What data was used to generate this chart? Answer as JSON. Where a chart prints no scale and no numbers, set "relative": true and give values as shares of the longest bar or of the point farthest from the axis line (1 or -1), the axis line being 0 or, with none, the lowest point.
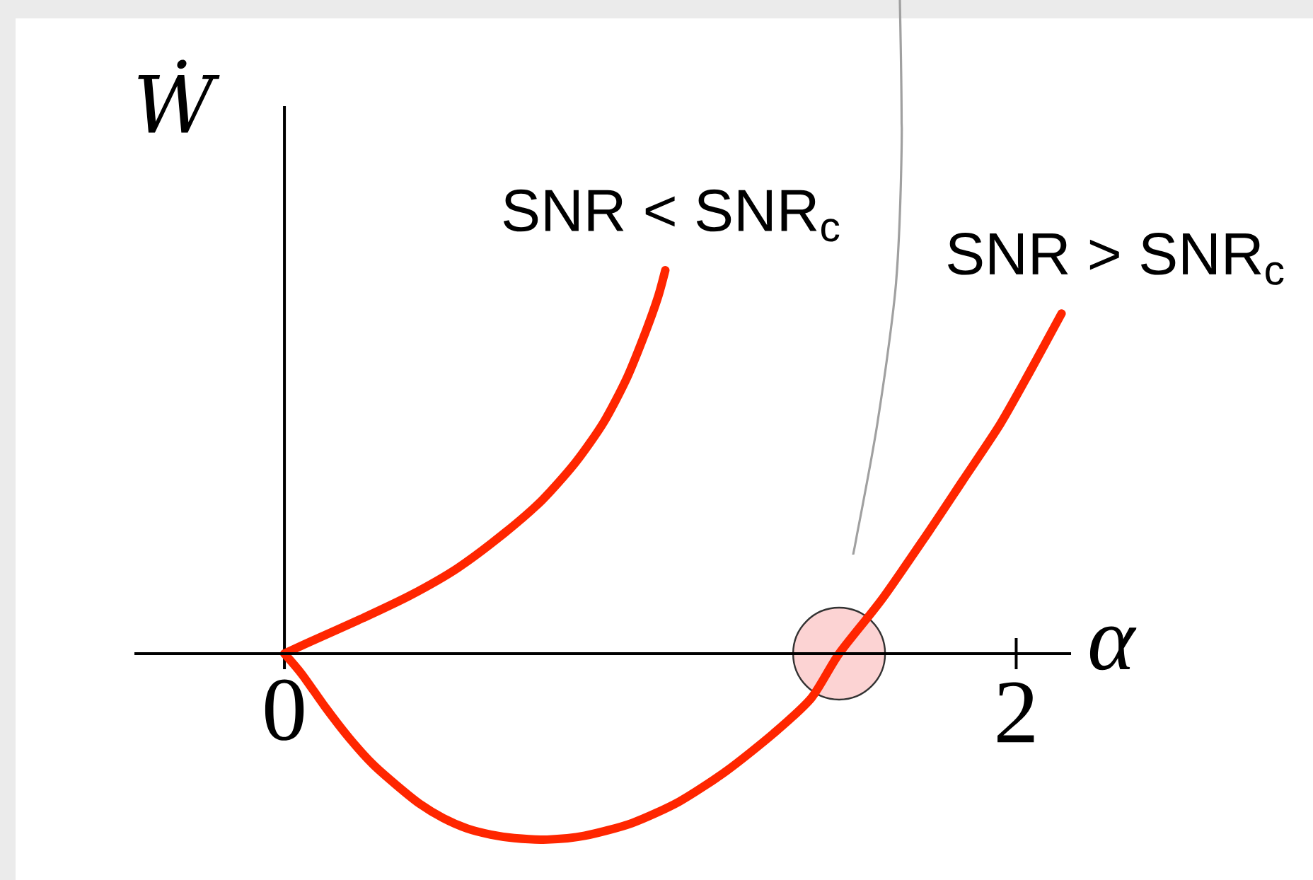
{
  "chart_data": {
    "type": "line",
    "xlabel": "α",
    "ylabel": "Ẇ",
    "relative": true,
    "xlim": [
      -0.41,
      2.15
    ],
    "xticks": [
      0,
      2
    ],
    "series": [
      {
        "name": "SNR < SNR$_{c}$",
        "color": "#ff2600",
        "x": [
          0,
          0.068,
          0.215,
          0.344,
          0.473,
          0.602,
          0.705,
          0.796,
          0.873,
          0.937,
          0.989,
          1.021,
          1.041
        ],
        "values": [
          0,
          0.03,
          0.093,
          0.152,
          0.223,
          0.315,
          0.401,
          0.499,
          0.604,
          0.721,
          0.844,
          0.93,
          1.0
        ]
      },
      {
        "name": "SNR > SNR$_{c}$",
        "color": "#ff2600",
        "x": [
          0,
          0.048,
          0.112,
          0.177,
          0.241,
          0.306,
          0.37,
          0.434,
          0.499,
          0.564,
          0.628,
          0.718,
          0.821,
          0.95,
          1.079,
          1.208,
          1.337,
          1.44,
          1.516,
          1.634,
          1.763,
          1.853,
          1.956,
          2.039,
          2.124
        ],
        "values": [
          0,
          -0.054,
          -0.14,
          -0.22,
          -0.288,
          -0.343,
          -0.392,
          -0.429,
          -0.456,
          -0.472,
          -0.481,
          -0.485,
          -0.475,
          -0.442,
          -0.386,
          -0.306,
          -0.208,
          -0.116,
          0,
          0.143,
          0.321,
          0.45,
          0.598,
          0.738,
          0.887
        ]
      },
      {
        "type": "scatter",
        "marker": "circle",
        "color": "#fcd3d3",
        "x": [
          1.516
        ],
        "values": [
          0
        ]
      }
    ]
  }
}
